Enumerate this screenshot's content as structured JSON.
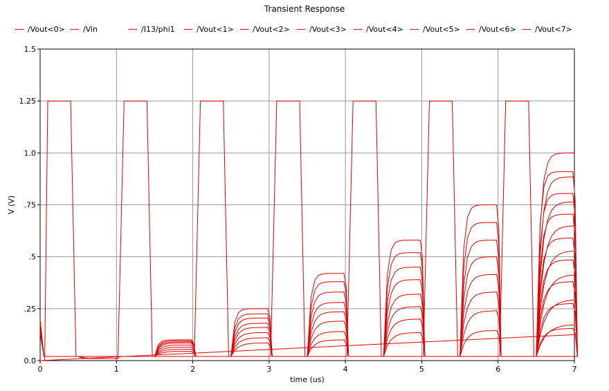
{
  "chart_data": {
    "type": "line",
    "title": "Transient Response",
    "xlabel": "time (us)",
    "ylabel": "V (V)",
    "xlim": [
      0,
      7
    ],
    "ylim": [
      0,
      1.5
    ],
    "x_ticks": [
      {
        "value": 0,
        "label": "0"
      },
      {
        "value": 1,
        "label": "1"
      },
      {
        "value": 2,
        "label": "2"
      },
      {
        "value": 3,
        "label": "3"
      },
      {
        "value": 4,
        "label": "4"
      },
      {
        "value": 5,
        "label": "5"
      },
      {
        "value": 6,
        "label": "6"
      },
      {
        "value": 7,
        "label": "7"
      }
    ],
    "y_ticks": [
      {
        "value": 0,
        "label": "0.0"
      },
      {
        "value": 0.25,
        "label": ".25"
      },
      {
        "value": 0.5,
        "label": ".5"
      },
      {
        "value": 0.75,
        "label": ".75"
      },
      {
        "value": 1.0,
        "label": "1.0"
      },
      {
        "value": 1.25,
        "label": "1.25"
      },
      {
        "value": 1.5,
        "label": "1.5"
      }
    ],
    "grid": true,
    "legend_position": "top",
    "series_color": "#e00000",
    "clock_high": 1.25,
    "clock_period": 1.0,
    "clock_high_start": 0.1,
    "clock_high_end": 0.4,
    "ramp": {
      "x": [
        0,
        7
      ],
      "y": [
        0,
        0.125
      ]
    },
    "hold_levels": [
      [
        0.01,
        0.01,
        0.01,
        0.01,
        0.01,
        0.01,
        0.01,
        0.01
      ],
      [
        0.1,
        0.095,
        0.09,
        0.085,
        0.075,
        0.065,
        0.055,
        0.045
      ],
      [
        0.25,
        0.225,
        0.205,
        0.18,
        0.16,
        0.135,
        0.11,
        0.085
      ],
      [
        0.42,
        0.38,
        0.33,
        0.28,
        0.235,
        0.19,
        0.14,
        0.1
      ],
      [
        0.58,
        0.52,
        0.45,
        0.39,
        0.32,
        0.26,
        0.2,
        0.135
      ],
      [
        0.75,
        0.665,
        0.58,
        0.5,
        0.415,
        0.33,
        0.24,
        0.145
      ],
      [
        0.91,
        0.805,
        0.705,
        0.59,
        0.485,
        0.38,
        0.275,
        0.155
      ],
      [
        1.0,
        0.885,
        0.765,
        0.65,
        0.53,
        0.415,
        0.295,
        0.175
      ]
    ],
    "series": [
      {
        "name": "/Vout<0>"
      },
      {
        "name": "/Vin"
      },
      {
        "name": "/I13/phi1"
      },
      {
        "name": "/Vout<1>"
      },
      {
        "name": "/Vout<2>"
      },
      {
        "name": "/Vout<3>"
      },
      {
        "name": "/Vout<4>"
      },
      {
        "name": "/Vout<5>"
      },
      {
        "name": "/Vout<6>"
      },
      {
        "name": "/Vout<7>"
      }
    ]
  }
}
